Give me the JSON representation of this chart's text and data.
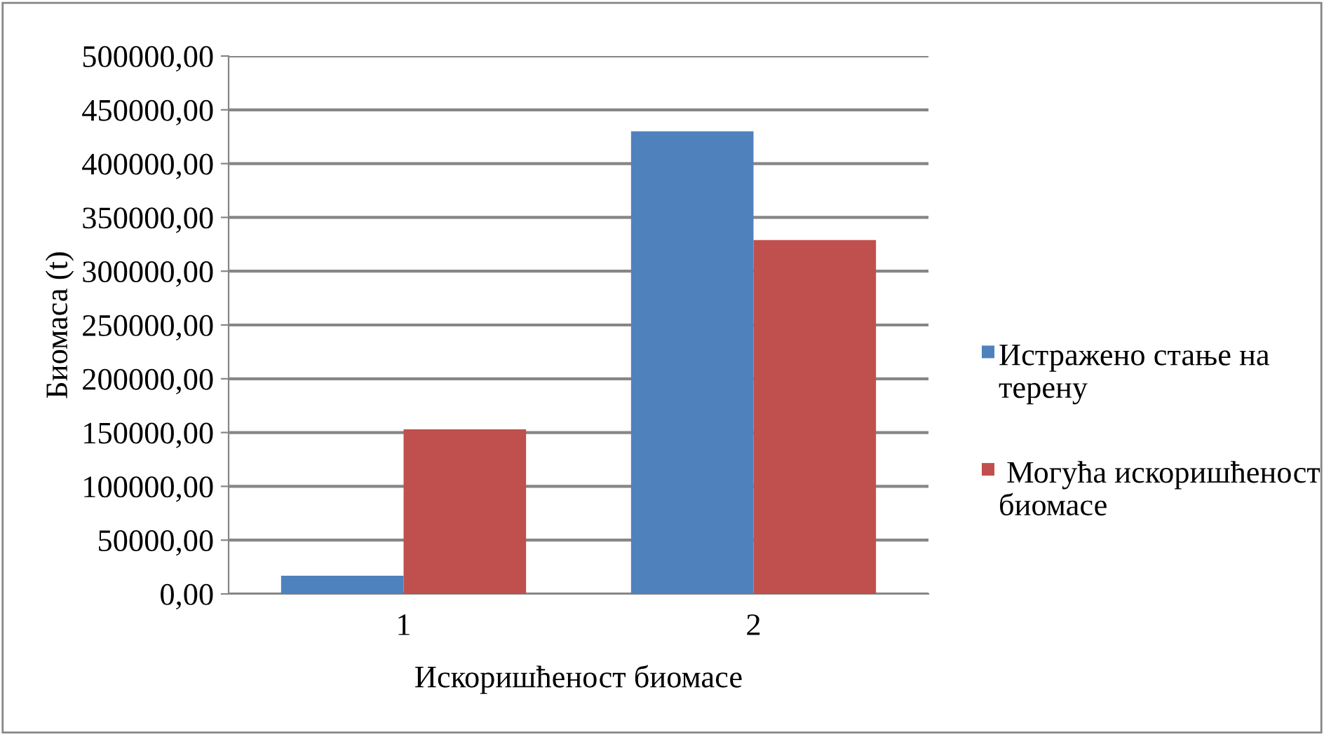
{
  "chart_data": {
    "type": "bar",
    "xlabel": "Искоришћеност биомасе",
    "ylabel": "Биомаса (t)",
    "categories": [
      "1",
      "2"
    ],
    "series": [
      {
        "name": "Истражено стање на терену",
        "color": "#4f81bd",
        "values": [
          17000,
          430000
        ]
      },
      {
        "name": " Могућа искоришћеност биомасе",
        "color": "#c0504d",
        "values": [
          153000,
          329000
        ]
      }
    ],
    "ylim": [
      0,
      500000
    ],
    "yticks": [
      {
        "value": 0,
        "label": "0,00"
      },
      {
        "value": 50000,
        "label": "50000,00"
      },
      {
        "value": 100000,
        "label": "100000,00"
      },
      {
        "value": 150000,
        "label": "150000,00"
      },
      {
        "value": 200000,
        "label": "200000,00"
      },
      {
        "value": 250000,
        "label": "250000,00"
      },
      {
        "value": 300000,
        "label": "300000,00"
      },
      {
        "value": 350000,
        "label": "350000,00"
      },
      {
        "value": 400000,
        "label": "400000,00"
      },
      {
        "value": 450000,
        "label": "450000,00"
      },
      {
        "value": 500000,
        "label": "500000,00"
      }
    ],
    "grid": "y",
    "legend": "right"
  }
}
